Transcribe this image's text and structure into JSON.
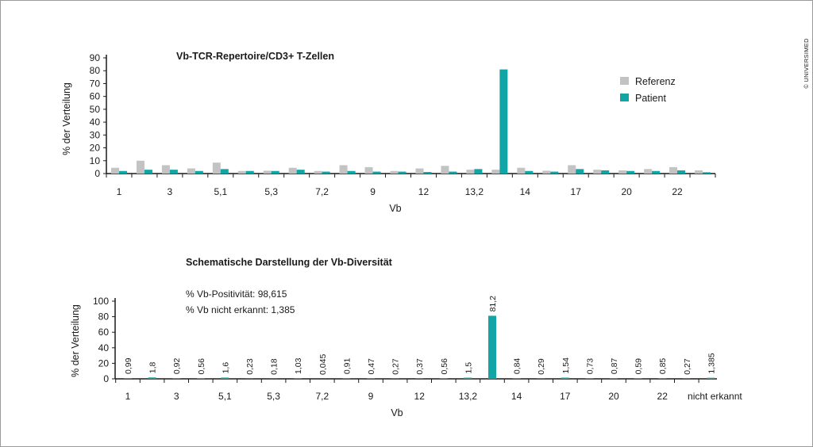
{
  "copyright": "© UNIVERSIMED",
  "colors": {
    "reference": "#c3c3c3",
    "patient": "#12a5a5",
    "axis": "#1a1a1a"
  },
  "chart_data": [
    {
      "type": "bar",
      "title": "Vb-TCR-Repertoire/CD3+ T-Zellen",
      "ylabel": "% der Verteilung",
      "xlabel": "Vb",
      "ylim": [
        0,
        90
      ],
      "yticks": [
        0,
        10,
        20,
        30,
        40,
        50,
        60,
        70,
        80,
        90
      ],
      "xtick_labels": [
        "1",
        "3",
        "5,1",
        "5,3",
        "7,2",
        "9",
        "12",
        "13,2",
        "14",
        "17",
        "20",
        "22"
      ],
      "legend_position": "top-right",
      "series": [
        {
          "name": "Referenz",
          "values": [
            4.5,
            10,
            6.5,
            4,
            8.5,
            2,
            2.2,
            4.5,
            2,
            6.5,
            5,
            2,
            4,
            6,
            3,
            3,
            4.5,
            2.2,
            6.5,
            3,
            2.5,
            3.5,
            5,
            2.5
          ]
        },
        {
          "name": "Patient",
          "values": [
            2,
            3,
            3,
            2,
            3.5,
            2,
            2,
            3,
            1.5,
            2,
            1.5,
            1.5,
            1.2,
            1.5,
            3.5,
            81,
            2,
            1.5,
            3.5,
            2.5,
            2,
            2,
            2.5,
            1
          ]
        }
      ]
    },
    {
      "type": "bar",
      "title": "Schematische Darstellung der Vb-Diversität",
      "ylabel": "% der Verteilung",
      "xlabel": "Vb",
      "ylim": [
        0,
        100
      ],
      "yticks": [
        0,
        20,
        40,
        60,
        80,
        100
      ],
      "xtick_labels": [
        "1",
        "3",
        "5,1",
        "5,3",
        "7,2",
        "9",
        "12",
        "13,2",
        "14",
        "17",
        "20",
        "22",
        "nicht erkannt"
      ],
      "annotations": [
        "% Vb-Positivität: 98,615",
        "% Vb nicht erkannt: 1,385"
      ],
      "series": [
        {
          "name": "",
          "values": [
            0.99,
            1.8,
            0.92,
            0.56,
            1.6,
            0.23,
            0.18,
            1.03,
            0.045,
            0.91,
            0.47,
            0.27,
            0.37,
            0.56,
            1.5,
            81.2,
            0.84,
            0.29,
            1.54,
            0.73,
            0.87,
            0.59,
            0.85,
            0.27,
            1.385
          ],
          "labels": [
            "0,99",
            "1,8",
            "0,92",
            "0,56",
            "1,6",
            "0,23",
            "0,18",
            "1,03",
            "0,045",
            "0,91",
            "0,47",
            "0,27",
            "0,37",
            "0,56",
            "1,5",
            "81,2",
            "0,84",
            "0,29",
            "1,54",
            "0,73",
            "0,87",
            "0,59",
            "0,85",
            "0,27",
            "1,385"
          ]
        }
      ]
    }
  ]
}
